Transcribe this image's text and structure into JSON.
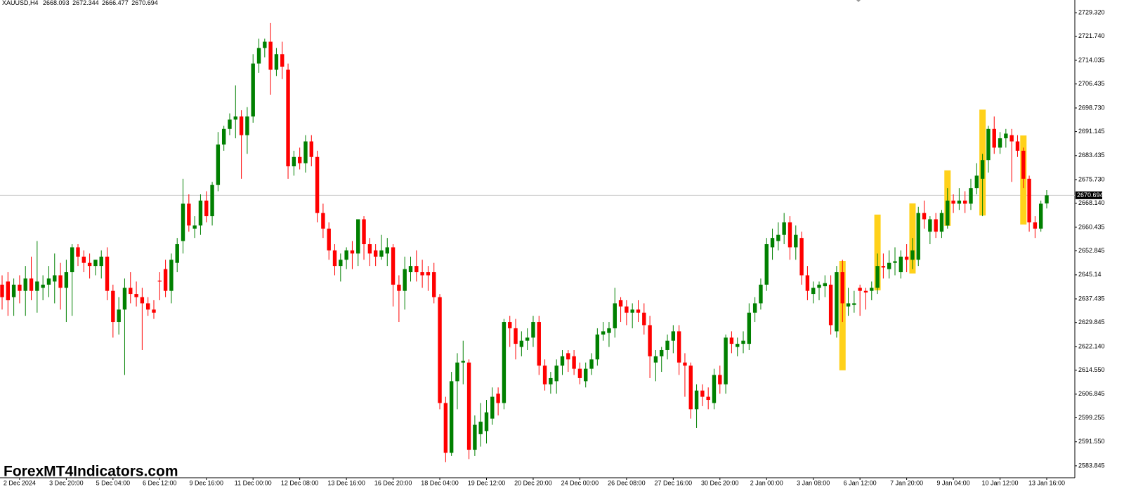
{
  "chart_data": {
    "type": "candlestick",
    "symbol": "XAUUSD,H4",
    "watermark": "ForexMT4Indicators.com",
    "up_color": "#008000",
    "down_color": "#ff0000",
    "highlight_color": "#ffd11a",
    "grid": false,
    "ylim": [
      2580.0,
      2733.4
    ],
    "yticks": [
      {
        "value": 2729.32,
        "label": "2729.320"
      },
      {
        "value": 2721.74,
        "label": "2721.740"
      },
      2714.035,
      2706.435,
      {
        "value": 2698.73,
        "label": "2698.730"
      },
      2691.145,
      2683.435,
      {
        "value": 2675.73,
        "label": "2675.730"
      },
      {
        "value": 2668.14,
        "label": "2668.140"
      },
      2660.435,
      2652.845,
      2645.14,
      2637.435,
      2629.845,
      {
        "value": 2622.14,
        "label": "2622.140"
      },
      {
        "value": 2614.55,
        "label": "2614.550"
      },
      2606.845,
      2599.255,
      {
        "value": 2591.55,
        "label": "2591.550"
      },
      2583.845
    ],
    "categories": [
      null,
      null,
      null,
      "2 Dec 2024",
      null,
      null,
      null,
      null,
      null,
      null,
      null,
      "3 Dec 20:00",
      null,
      null,
      null,
      null,
      null,
      null,
      null,
      "5 Dec 04:00",
      null,
      null,
      null,
      null,
      null,
      null,
      null,
      "6 Dec 12:00",
      null,
      null,
      null,
      null,
      null,
      null,
      null,
      "9 Dec 16:00",
      null,
      null,
      null,
      null,
      null,
      null,
      null,
      "11 Dec 00:00",
      null,
      null,
      null,
      null,
      null,
      null,
      null,
      "12 Dec 08:00",
      null,
      null,
      null,
      null,
      null,
      null,
      null,
      "13 Dec 16:00",
      null,
      null,
      null,
      null,
      null,
      null,
      null,
      "16 Dec 20:00",
      null,
      null,
      null,
      null,
      null,
      null,
      null,
      "18 Dec 04:00",
      null,
      null,
      null,
      null,
      null,
      null,
      null,
      "19 Dec 12:00",
      null,
      null,
      null,
      null,
      null,
      null,
      null,
      "20 Dec 20:00",
      null,
      null,
      null,
      null,
      null,
      null,
      null,
      "24 Dec 00:00",
      null,
      null,
      null,
      null,
      null,
      null,
      null,
      "26 Dec 08:00",
      null,
      null,
      null,
      null,
      null,
      null,
      null,
      "27 Dec 16:00",
      null,
      null,
      null,
      null,
      null,
      null,
      null,
      "30 Dec 20:00",
      null,
      null,
      null,
      null,
      null,
      null,
      null,
      "2 Jan 00:00",
      null,
      null,
      null,
      null,
      null,
      null,
      null,
      "3 Jan 08:00",
      null,
      null,
      null,
      null,
      null,
      null,
      null,
      "6 Jan 12:00",
      null,
      null,
      null,
      null,
      null,
      null,
      null,
      "7 Jan 20:00",
      null,
      null,
      null,
      null,
      null,
      null,
      null,
      "9 Jan 04:00",
      null,
      null,
      null,
      null,
      null,
      null,
      null,
      "10 Jan 12:00",
      null,
      null,
      null,
      null,
      null,
      null,
      null,
      "13 Jan 16:00"
    ],
    "candles": [
      [
        2642,
        2645,
        2634,
        2638
      ],
      [
        2643,
        2646,
        2632,
        2637
      ],
      [
        2638,
        2644,
        2632,
        2642
      ],
      [
        2642,
        2645,
        2636,
        2640
      ],
      [
        2640,
        2648,
        2632,
        2644
      ],
      [
        2644,
        2651,
        2637,
        2640
      ],
      [
        2640,
        2656,
        2633,
        2643
      ],
      [
        2641,
        2645,
        2637,
        2642
      ],
      [
        2642,
        2648,
        2638,
        2644
      ],
      [
        2643,
        2652,
        2636,
        2645
      ],
      [
        2645,
        2649,
        2634,
        2641
      ],
      [
        2641,
        2650,
        2630,
        2646
      ],
      [
        2646,
        2655,
        2632,
        2654
      ],
      [
        2654,
        2655,
        2648,
        2651
      ],
      [
        2651,
        2653,
        2646,
        2649
      ],
      [
        2649,
        2652,
        2644,
        2648
      ],
      [
        2648,
        2650,
        2645,
        2650
      ],
      [
        2648,
        2653,
        2644,
        2651
      ],
      [
        2651,
        2654,
        2637,
        2640
      ],
      [
        2640,
        2642,
        2625,
        2630
      ],
      [
        2630,
        2638,
        2626,
        2634
      ],
      [
        2634,
        2644,
        2613,
        2641
      ],
      [
        2641,
        2646,
        2636,
        2639
      ],
      [
        2639,
        2643,
        2635,
        2638
      ],
      [
        2638,
        2641,
        2621,
        2636
      ],
      [
        2636,
        2638,
        2632,
        2634
      ],
      [
        2634,
        2637,
        2631,
        2633
      ],
      [
        2643.3,
        2646,
        2637,
        2643
      ],
      [
        2647,
        2650,
        2638,
        2640
      ],
      [
        2640,
        2652,
        2636,
        2650
      ],
      [
        2649,
        2657,
        2646,
        2655
      ],
      [
        2656,
        2676,
        2652,
        2668
      ],
      [
        2668,
        2671,
        2659,
        2661
      ],
      [
        2660,
        2664,
        2657,
        2661
      ],
      [
        2661,
        2671,
        2658,
        2669
      ],
      [
        2669,
        2672,
        2662,
        2664
      ],
      [
        2664,
        2675,
        2661,
        2674
      ],
      [
        2674,
        2691,
        2672,
        2687
      ],
      [
        2687,
        2693,
        2685,
        2692
      ],
      [
        2692,
        2697,
        2690,
        2695
      ],
      [
        2695,
        2706,
        2689,
        2696
      ],
      [
        2696,
        2698,
        2676,
        2690
      ],
      [
        2690,
        2699,
        2684,
        2696
      ],
      [
        2696,
        2716,
        2694,
        2713
      ],
      [
        2713,
        2721,
        2710,
        2718
      ],
      [
        2718,
        2721,
        2715,
        2720
      ],
      [
        2720,
        2726,
        2703,
        2711
      ],
      [
        2711,
        2718,
        2709,
        2716
      ],
      [
        2716,
        2720,
        2708,
        2712
      ],
      [
        2711,
        2713,
        2676,
        2680
      ],
      [
        2680,
        2685,
        2677,
        2683
      ],
      [
        2683,
        2686,
        2679,
        2681
      ],
      [
        2681,
        2690,
        2678,
        2688
      ],
      [
        2688,
        2690,
        2680,
        2683
      ],
      [
        2683,
        2685,
        2662,
        2665
      ],
      [
        2665,
        2668,
        2657,
        2660
      ],
      [
        2660,
        2662,
        2650,
        2653
      ],
      [
        2653,
        2655,
        2645,
        2648
      ],
      [
        2648,
        2652,
        2643,
        2650
      ],
      [
        2650,
        2654,
        2647,
        2653
      ],
      [
        2653,
        2656,
        2647,
        2652
      ],
      [
        2652,
        2663,
        2648,
        2663
      ],
      [
        2663,
        2664,
        2650,
        2655
      ],
      [
        2655,
        2657,
        2648,
        2652
      ],
      [
        2653,
        2655,
        2648,
        2651
      ],
      [
        2651,
        2658,
        2650,
        2653
      ],
      [
        2652,
        2657,
        2648,
        2654
      ],
      [
        2654,
        2655,
        2635,
        2642
      ],
      [
        2642,
        2645,
        2630,
        2640
      ],
      [
        2640,
        2651,
        2634,
        2647
      ],
      [
        2646,
        2651,
        2643,
        2648
      ],
      [
        2648,
        2653,
        2643,
        2646
      ],
      [
        2646,
        2650,
        2641,
        2645
      ],
      [
        2646,
        2648,
        2640,
        2645
      ],
      [
        2646,
        2649,
        2636,
        2638
      ],
      [
        2638,
        2639,
        2602,
        2604
      ],
      [
        2604,
        2606,
        2585,
        2588
      ],
      [
        2588,
        2614,
        2587,
        2611
      ],
      [
        2611,
        2620,
        2602,
        2617
      ],
      [
        2617,
        2624,
        2610,
        2617.5
      ],
      [
        2617,
        2618,
        2586,
        2589
      ],
      [
        2589,
        2600,
        2587,
        2597
      ],
      [
        2594,
        2604,
        2590,
        2598
      ],
      [
        2595,
        2605,
        2591,
        2601
      ],
      [
        2599,
        2609,
        2597,
        2606
      ],
      [
        2607,
        2609,
        2600,
        2604
      ],
      [
        2604,
        2631,
        2602,
        2630
      ],
      [
        2630,
        2632,
        2622,
        2628
      ],
      [
        2628,
        2631,
        2618,
        2623
      ],
      [
        2622,
        2627,
        2619,
        2624
      ],
      [
        2624,
        2628,
        2621,
        2625
      ],
      [
        2625,
        2632,
        2622,
        2630
      ],
      [
        2630,
        2632,
        2613,
        2616
      ],
      [
        2616,
        2618,
        2608,
        2610
      ],
      [
        2610,
        2614,
        2607,
        2612
      ],
      [
        2611,
        2618,
        2607,
        2616
      ],
      [
        2616,
        2621,
        2613,
        2619
      ],
      [
        2620,
        2621,
        2614,
        2618
      ],
      [
        2619,
        2621,
        2613,
        2615
      ],
      [
        2615,
        2617,
        2610,
        2612
      ],
      [
        2611,
        2617,
        2609,
        2615
      ],
      [
        2615,
        2620,
        2613,
        2618
      ],
      [
        2618,
        2628,
        2616,
        2626
      ],
      [
        2626,
        2630,
        2624,
        2627
      ],
      [
        2626.5,
        2630,
        2622,
        2628
      ],
      [
        2628,
        2641,
        2625,
        2636
      ],
      [
        2637,
        2638,
        2630,
        2635
      ],
      [
        2635,
        2637,
        2629,
        2633
      ],
      [
        2633,
        2636,
        2628,
        2634
      ],
      [
        2634,
        2637,
        2630,
        2633
      ],
      [
        2633,
        2636,
        2626,
        2629
      ],
      [
        2629,
        2632,
        2612,
        2619
      ],
      [
        2617,
        2621,
        2611,
        2619
      ],
      [
        2619,
        2622,
        2614,
        2621
      ],
      [
        2621,
        2626,
        2618,
        2624
      ],
      [
        2624,
        2629,
        2620,
        2627
      ],
      [
        2627,
        2629,
        2613,
        2617
      ],
      [
        2617,
        2620,
        2606,
        2616
      ],
      [
        2616,
        2617,
        2599,
        2602
      ],
      [
        2602,
        2610,
        2596,
        2608
      ],
      [
        2608,
        2610,
        2603,
        2606
      ],
      [
        2606,
        2609,
        2602,
        2605
      ],
      [
        2604,
        2615,
        2602,
        2613
      ],
      [
        2613,
        2616,
        2607,
        2610
      ],
      [
        2610,
        2626,
        2607,
        2625
      ],
      [
        2625,
        2627,
        2620,
        2623
      ],
      [
        2622,
        2625,
        2619,
        2623
      ],
      [
        2623,
        2627,
        2620,
        2624
      ],
      [
        2623,
        2636,
        2621,
        2633
      ],
      [
        2633,
        2638,
        2630,
        2636
      ],
      [
        2636,
        2644,
        2634,
        2642
      ],
      [
        2642,
        2657,
        2640,
        2655
      ],
      [
        2654,
        2660,
        2650,
        2657
      ],
      [
        2656,
        2662,
        2653,
        2658
      ],
      [
        2658,
        2665,
        2655,
        2662
      ],
      [
        2662,
        2664,
        2650,
        2654
      ],
      [
        2654,
        2661,
        2650,
        2658
      ],
      [
        2657,
        2659,
        2642,
        2645
      ],
      [
        2645,
        2648,
        2637,
        2640
      ],
      [
        2639,
        2643,
        2636,
        2641
      ],
      [
        2641,
        2643,
        2637,
        2642
      ],
      [
        2641.5,
        2645,
        2638,
        2642.5
      ],
      [
        2642,
        2645,
        2626,
        2629
      ],
      [
        2627,
        2648,
        2625,
        2646
      ],
      [
        2646,
        2650,
        2630,
        2636
      ],
      [
        2635,
        2641,
        2632,
        2636
      ],
      [
        2635.5,
        2640,
        2633,
        2636
      ],
      [
        2641,
        2642,
        2632,
        2640
      ],
      [
        2640,
        2641,
        2634,
        2639.5
      ],
      [
        2640,
        2643,
        2637,
        2641
      ],
      [
        2641,
        2652,
        2639,
        2648
      ],
      [
        2648,
        2652,
        2644,
        2647.5
      ],
      [
        2647,
        2653,
        2644,
        2649
      ],
      [
        2649,
        2654,
        2645,
        2649.5
      ],
      [
        2646,
        2653,
        2644,
        2651
      ],
      [
        2651,
        2655,
        2646,
        2650
      ],
      [
        2650,
        2657,
        2647,
        2653
      ],
      [
        2650,
        2667,
        2648,
        2665
      ],
      [
        2665,
        2669,
        2660,
        2663
      ],
      [
        2659,
        2664,
        2655,
        2663
      ],
      [
        2663,
        2665,
        2657,
        2659
      ],
      [
        2659,
        2666,
        2657,
        2665
      ],
      [
        2661,
        2673,
        2660,
        2669
      ],
      [
        2669,
        2671,
        2665,
        2668
      ],
      [
        2668,
        2673,
        2666,
        2669
      ],
      [
        2669,
        2672,
        2665,
        2668
      ],
      [
        2668,
        2676,
        2666,
        2673
      ],
      [
        2673,
        2681,
        2671,
        2677
      ],
      [
        2676,
        2684,
        2664,
        2682
      ],
      [
        2682,
        2693,
        2678,
        2692
      ],
      [
        2692,
        2696,
        2684,
        2686
      ],
      [
        2686,
        2691,
        2684,
        2689
      ],
      [
        2689,
        2692,
        2686,
        2690.5
      ],
      [
        2690,
        2692,
        2675,
        2688
      ],
      [
        2688,
        2690,
        2683,
        2685
      ],
      [
        2685,
        2686,
        2673,
        2676
      ],
      [
        2676,
        2677,
        2659,
        2662
      ],
      [
        2662,
        2664,
        2657,
        2660
      ],
      [
        2660,
        2669,
        2659,
        2668
      ],
      [
        2668.093,
        2672.344,
        2666.477,
        2670.694
      ]
    ],
    "highlights": [
      null,
      null,
      null,
      null,
      null,
      null,
      null,
      null,
      null,
      null,
      null,
      null,
      null,
      null,
      null,
      null,
      null,
      null,
      null,
      null,
      null,
      null,
      null,
      null,
      null,
      null,
      null,
      null,
      null,
      null,
      null,
      null,
      null,
      null,
      null,
      null,
      null,
      null,
      null,
      null,
      null,
      null,
      null,
      null,
      null,
      null,
      null,
      null,
      null,
      null,
      null,
      null,
      null,
      null,
      null,
      null,
      null,
      null,
      null,
      null,
      null,
      null,
      null,
      null,
      null,
      null,
      null,
      null,
      null,
      null,
      null,
      null,
      null,
      null,
      null,
      null,
      null,
      null,
      null,
      null,
      null,
      null,
      null,
      null,
      null,
      null,
      null,
      null,
      null,
      null,
      null,
      null,
      null,
      null,
      null,
      null,
      null,
      null,
      null,
      null,
      null,
      null,
      null,
      null,
      null,
      null,
      null,
      null,
      null,
      null,
      null,
      null,
      null,
      null,
      null,
      null,
      null,
      null,
      null,
      null,
      null,
      null,
      null,
      null,
      null,
      null,
      null,
      null,
      null,
      null,
      null,
      null,
      null,
      null,
      null,
      null,
      null,
      null,
      null,
      null,
      null,
      null,
      null,
      null,
      [
        2649.6,
        2614.5
      ],
      null,
      null,
      null,
      null,
      null,
      [
        2664.5,
        2640.2
      ],
      null,
      null,
      null,
      null,
      null,
      [
        2668.1,
        2645.6
      ],
      null,
      null,
      null,
      null,
      null,
      [
        2678.7,
        2660.9
      ],
      null,
      null,
      null,
      null,
      null,
      [
        2698.2,
        2664.2
      ],
      null,
      null,
      null,
      null,
      null,
      null,
      [
        2689.9,
        2661.3
      ],
      null,
      null,
      null,
      null
    ]
  }
}
